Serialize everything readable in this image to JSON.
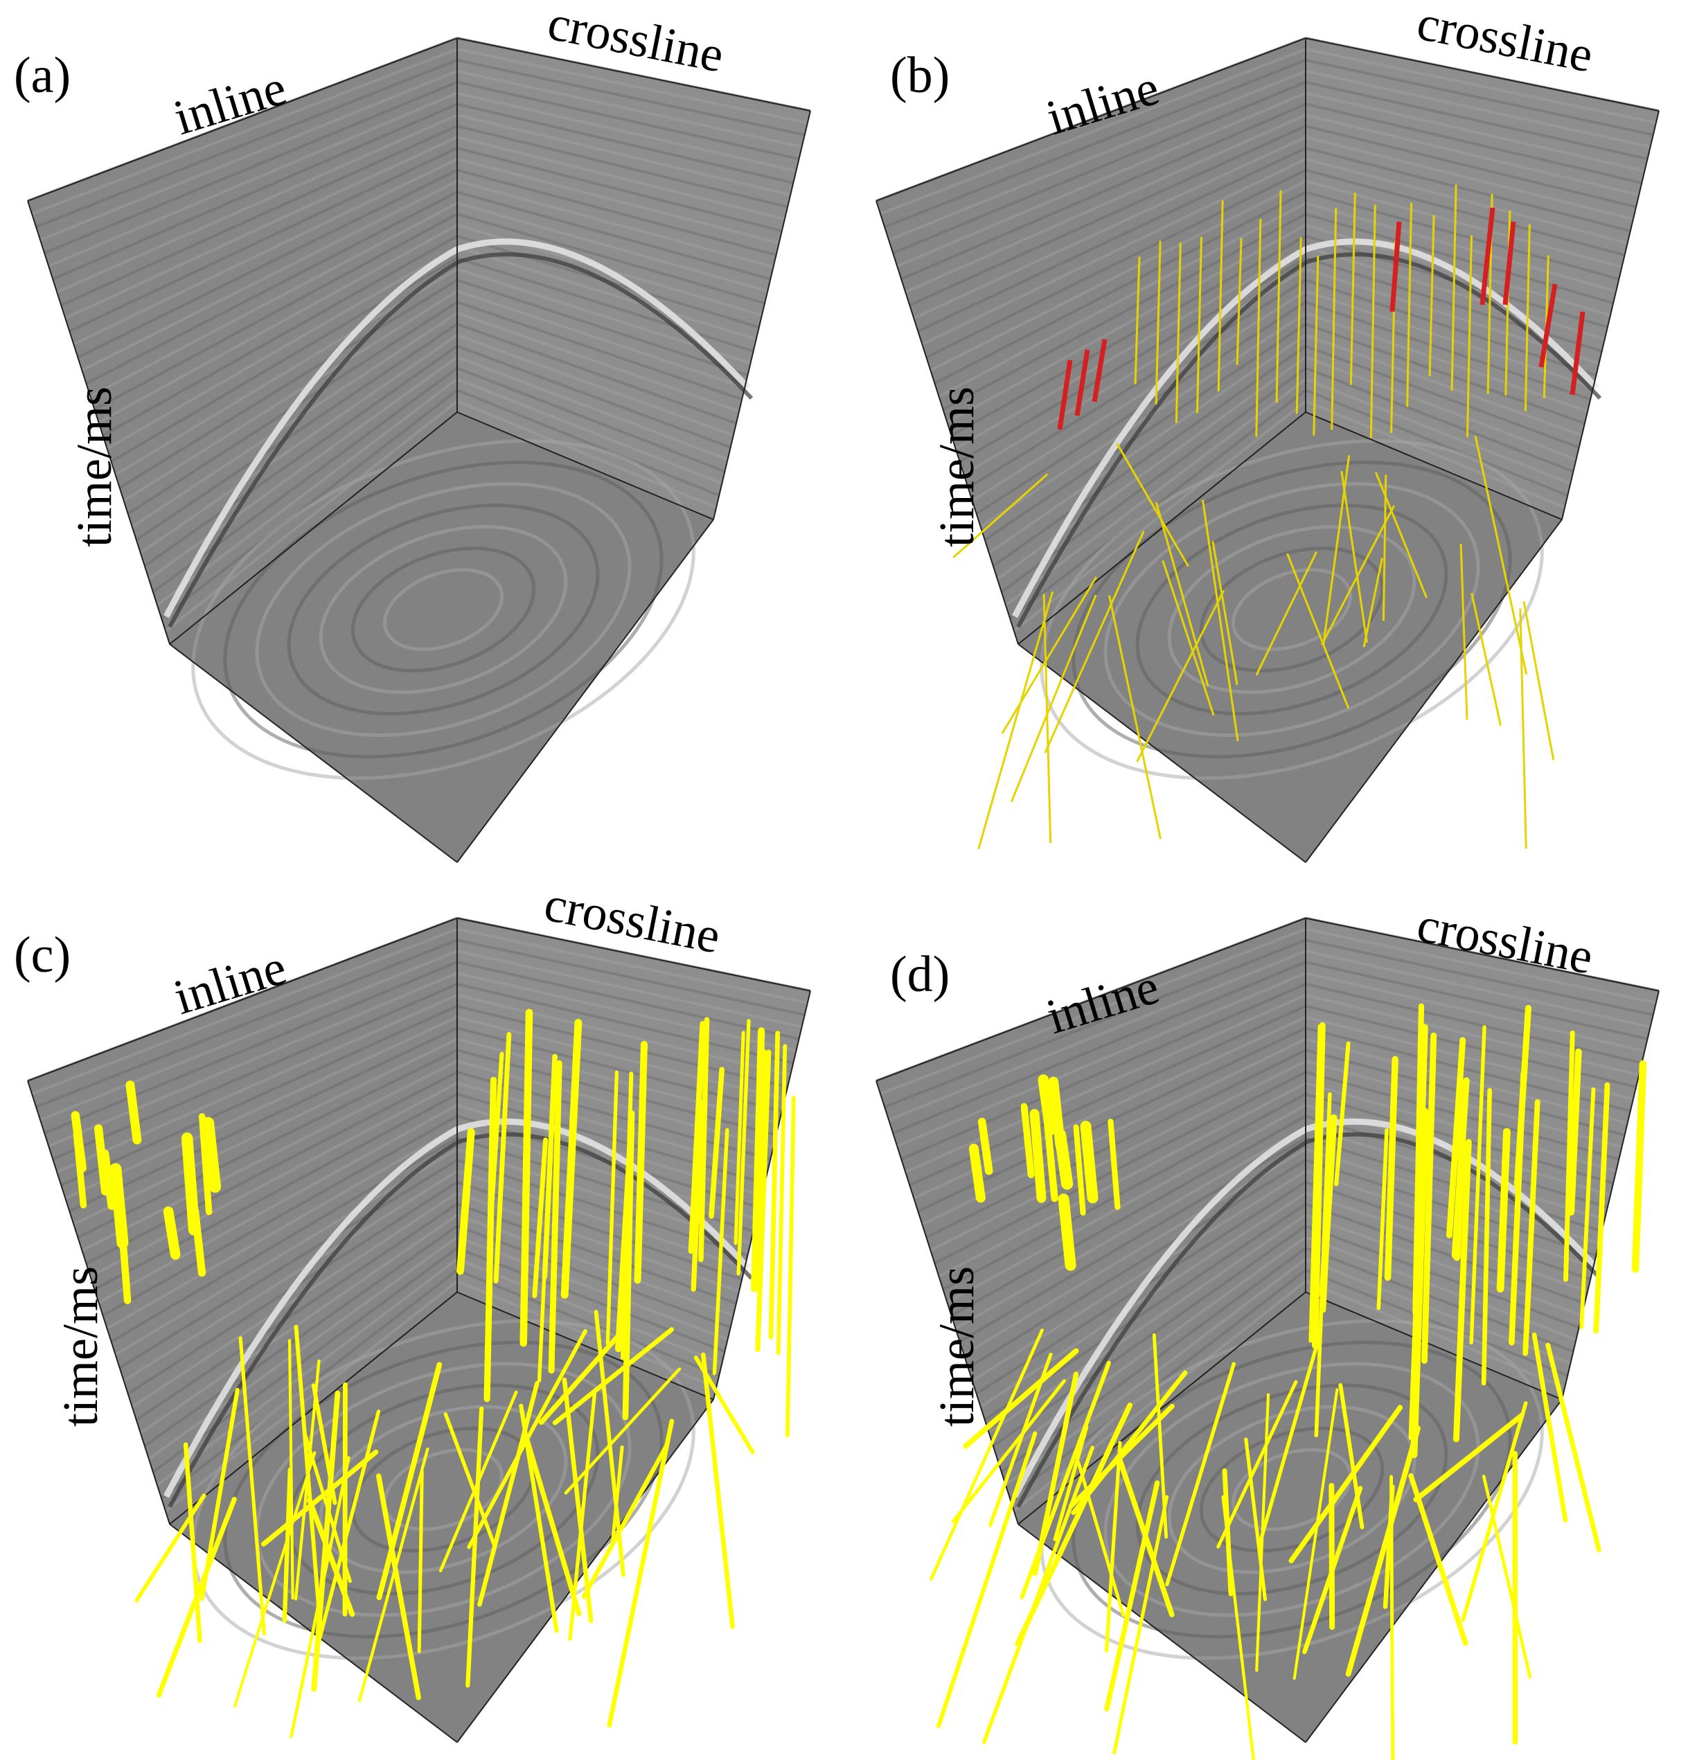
{
  "panels": [
    {
      "tag": "(a)",
      "inline": "inline",
      "crossline": "crossline",
      "time": "time/ms",
      "overlay": "none"
    },
    {
      "tag": "(b)",
      "inline": "inline",
      "crossline": "crossline",
      "time": "time/ms",
      "overlay": "labels"
    },
    {
      "tag": "(c)",
      "inline": "inline",
      "crossline": "crossline",
      "time": "time/ms",
      "overlay": "prediction"
    },
    {
      "tag": "(d)",
      "inline": "inline",
      "crossline": "crossline",
      "time": "time/ms",
      "overlay": "prediction"
    }
  ],
  "colors": {
    "seismic_face": "#8a8a8a",
    "fault_label": "#e6d400",
    "fault_highlight": "#d42020",
    "fault_prediction": "#ffff00",
    "edge": "#222222"
  }
}
